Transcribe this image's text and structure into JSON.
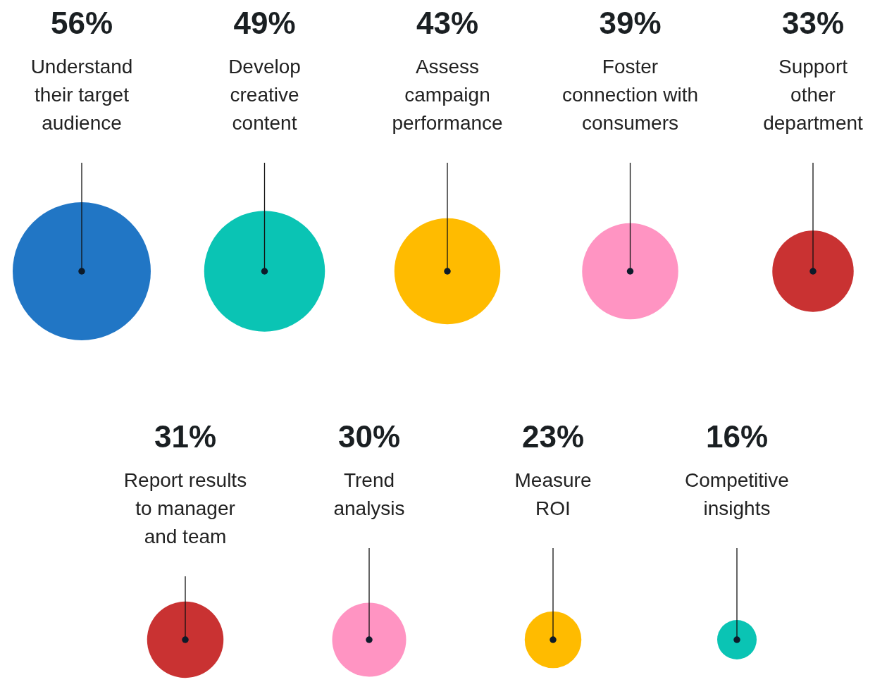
{
  "chart_data": {
    "type": "other",
    "categories": [
      "Understand\ntheir target\naudience",
      "Develop\ncreative\ncontent",
      "Assess\ncampaign\nperformance",
      "Foster\nconnection with\nconsumers",
      "Support\nother\ndepartment",
      "Report results\nto manager\nand team",
      "Trend\nanalysis",
      "Measure\nROI",
      "Competitive\ninsights"
    ],
    "values": [
      56,
      49,
      43,
      39,
      33,
      31,
      30,
      23,
      16
    ],
    "value_labels": [
      "56%",
      "49%",
      "43%",
      "39%",
      "33%",
      "31%",
      "30%",
      "23%",
      "16%"
    ],
    "colors": [
      "#2176c5",
      "#0ac4b4",
      "#ffbb00",
      "#ff94c2",
      "#c93232",
      "#c93232",
      "#ff94c2",
      "#ffbb00",
      "#0ac4b4"
    ]
  }
}
